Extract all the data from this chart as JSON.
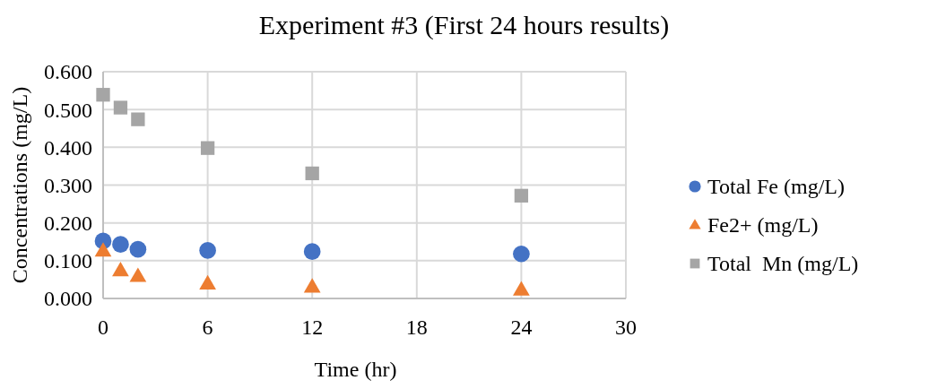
{
  "chart_data": {
    "type": "scatter",
    "title": "Experiment #3 (First 24 hours results)",
    "xlabel": "Time (hr)",
    "ylabel": "Concentrations (mg/L)",
    "x": [
      0,
      1,
      2,
      6,
      12,
      24
    ],
    "series": [
      {
        "name": "Total Fe (mg/L)",
        "color": "#4472c4",
        "marker": "circle",
        "values": [
          0.152,
          0.143,
          0.13,
          0.127,
          0.124,
          0.118
        ]
      },
      {
        "name": "Fe2+ (mg/L)",
        "color": "#ed7d31",
        "marker": "triangle",
        "values": [
          0.126,
          0.074,
          0.059,
          0.039,
          0.031,
          0.023
        ]
      },
      {
        "name": "Total  Mn (mg/L)",
        "color": "#a5a5a5",
        "marker": "square",
        "values": [
          0.539,
          0.505,
          0.474,
          0.398,
          0.331,
          0.272
        ]
      }
    ],
    "xlim": [
      0,
      30
    ],
    "xticks": [
      0,
      6,
      12,
      18,
      24,
      30
    ],
    "ylim": [
      0,
      0.6
    ],
    "yticks": [
      {
        "value": 0,
        "label": "0.000"
      },
      {
        "value": 0.1,
        "label": "0.100"
      },
      {
        "value": 0.2,
        "label": "0.200"
      },
      {
        "value": 0.3,
        "label": "0.300"
      },
      {
        "value": 0.4,
        "label": "0.400"
      },
      {
        "value": 0.5,
        "label": "0.500"
      },
      {
        "value": 0.6,
        "label": "0.600"
      }
    ],
    "grid": true,
    "legend": "right"
  }
}
